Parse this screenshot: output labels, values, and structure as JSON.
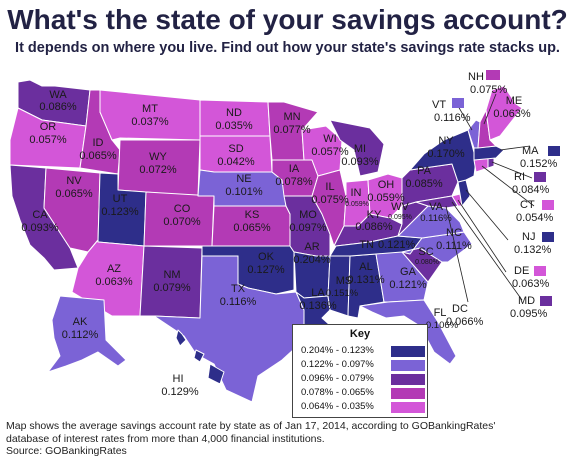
{
  "title": "What's the state of your savings account?",
  "subtitle": "It depends on where you live. Find out how your state's savings rate stacks up.",
  "colors": {
    "tier1": "#2e2e8a",
    "tier2": "#7b63d6",
    "tier3": "#6b2f9e",
    "tier4": "#b33ab5",
    "tier5": "#d356d8"
  },
  "key": {
    "title": "Key",
    "ranges": [
      "0.204% - 0.123%",
      "0.122% - 0.097%",
      "0.096% - 0.079%",
      "0.078% - 0.065%",
      "0.064% - 0.035%"
    ]
  },
  "states": {
    "WA": "0.086%",
    "OR": "0.057%",
    "CA": "0.093%",
    "ID": "0.065%",
    "NV": "0.065%",
    "MT": "0.037%",
    "WY": "0.072%",
    "UT": "0.123%",
    "AZ": "0.063%",
    "CO": "0.070%",
    "NM": "0.079%",
    "ND": "0.035%",
    "SD": "0.042%",
    "NE": "0.101%",
    "KS": "0.065%",
    "OK": "0.127%",
    "TX": "0.116%",
    "MN": "0.077%",
    "IA": "0.078%",
    "MO": "0.097%",
    "AR": "0.204%",
    "LA": "0.136%",
    "WI": "0.057%",
    "IL": "0.075%",
    "MS": "0.151%",
    "MI": "0.093%",
    "IN": "0.059%",
    "OH": "0.059%",
    "KY": "0.086%",
    "TN": "0.121%",
    "AL": "0.131%",
    "GA": "0.121%",
    "FL": "0.106%",
    "SC": "0.080%",
    "NC": "0.111%",
    "VA": "0.116%",
    "WV": "0.095%",
    "PA": "0.085%",
    "NY": "0.170%",
    "ME": "0.063%",
    "AK": "0.112%",
    "HI": "0.129%",
    "NH": "0.075%",
    "VT": "0.116%",
    "MA": "0.152%",
    "RI": "0.084%",
    "CT": "0.054%",
    "NJ": "0.132%",
    "DE": "0.063%",
    "MD": "0.095%",
    "DC": "0.066%"
  },
  "footer": {
    "line1": "Map shows the average savings account rate by state as of Jan 17, 2014, according to GOBankingRates'",
    "line2": "database of interest rates from more than 4,000 financial institutions.",
    "source": "Source: GOBankingRates"
  }
}
